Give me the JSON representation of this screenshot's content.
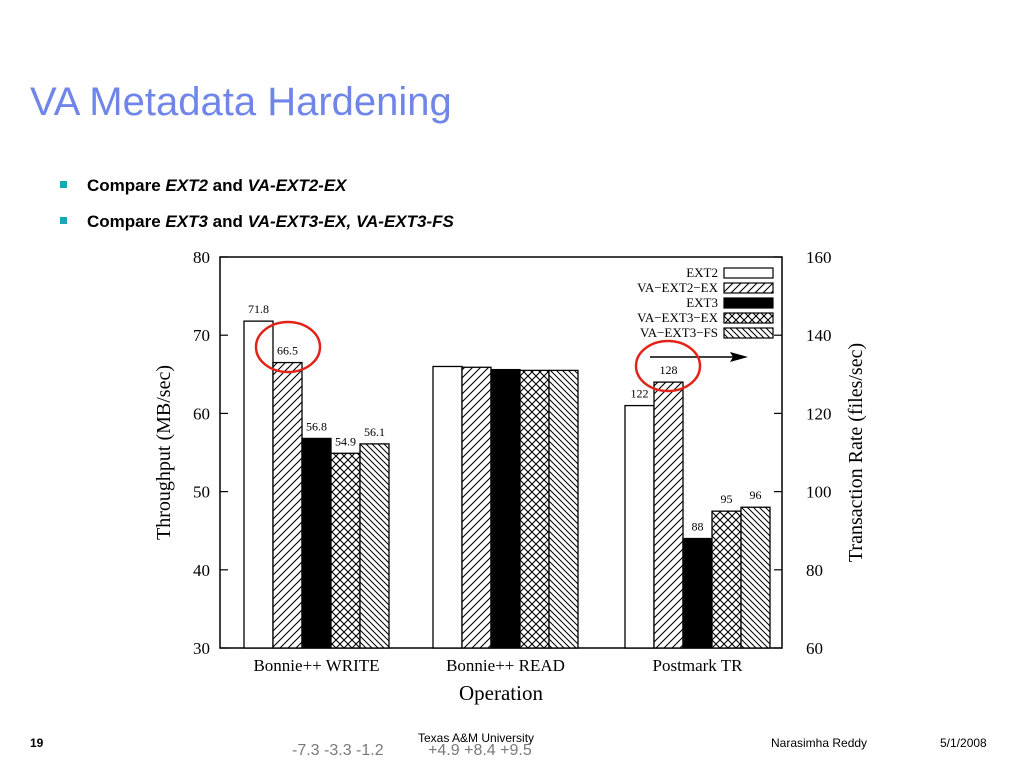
{
  "slide": {
    "title": "VA Metadata Hardening",
    "bullets": [
      {
        "prefix": "Compare ",
        "a": "EXT2",
        "mid": " and ",
        "b": "VA-EXT2-EX"
      },
      {
        "prefix": "Compare ",
        "a": "EXT3",
        "mid": " and ",
        "b": "VA-EXT3-EX, VA-EXT3-FS"
      }
    ]
  },
  "footer": {
    "page_number": "19",
    "institution": "Texas A&M University",
    "author": "Narasimha Reddy",
    "date": "5/1/2008",
    "overlay_left": "-7.3 -3.3 -1.2",
    "overlay_right": "+4.9 +8.4 +9.5"
  },
  "chart_data": {
    "type": "bar",
    "xlabel": "Operation",
    "ylabel": "Throughput (MB/sec)",
    "y2label": "Transaction Rate (files/sec)",
    "ylim": [
      30,
      80
    ],
    "y2lim": [
      60,
      160
    ],
    "yticks": [
      30,
      40,
      50,
      60,
      70,
      80
    ],
    "y2ticks": [
      60,
      80,
      100,
      120,
      140,
      160
    ],
    "categories": [
      "Bonnie++ WRITE",
      "Bonnie++ READ",
      "Postmark TR"
    ],
    "legend_position": "top-right",
    "series": [
      {
        "name": "EXT2",
        "pattern": "white"
      },
      {
        "name": "VA−EXT2−EX",
        "pattern": "diag-right"
      },
      {
        "name": "EXT3",
        "pattern": "black"
      },
      {
        "name": "VA−EXT3−EX",
        "pattern": "cross"
      },
      {
        "name": "VA−EXT3−FS",
        "pattern": "diag-left"
      }
    ],
    "groups": [
      {
        "axis": "left",
        "values": [
          71.8,
          66.5,
          56.8,
          54.9,
          56.1
        ],
        "labels": [
          "71.8",
          "66.5",
          "56.8",
          "54.9",
          "56.1"
        ]
      },
      {
        "axis": "left",
        "values": [
          66,
          65.9,
          65.6,
          65.5,
          65.5
        ],
        "labels": [
          "",
          "",
          "",
          "",
          ""
        ]
      },
      {
        "axis": "right",
        "values": [
          122,
          128,
          88,
          95,
          96
        ],
        "labels": [
          "122",
          "128",
          "88",
          "95",
          "96"
        ]
      }
    ],
    "highlight_circles": [
      "66.5",
      "128"
    ]
  }
}
